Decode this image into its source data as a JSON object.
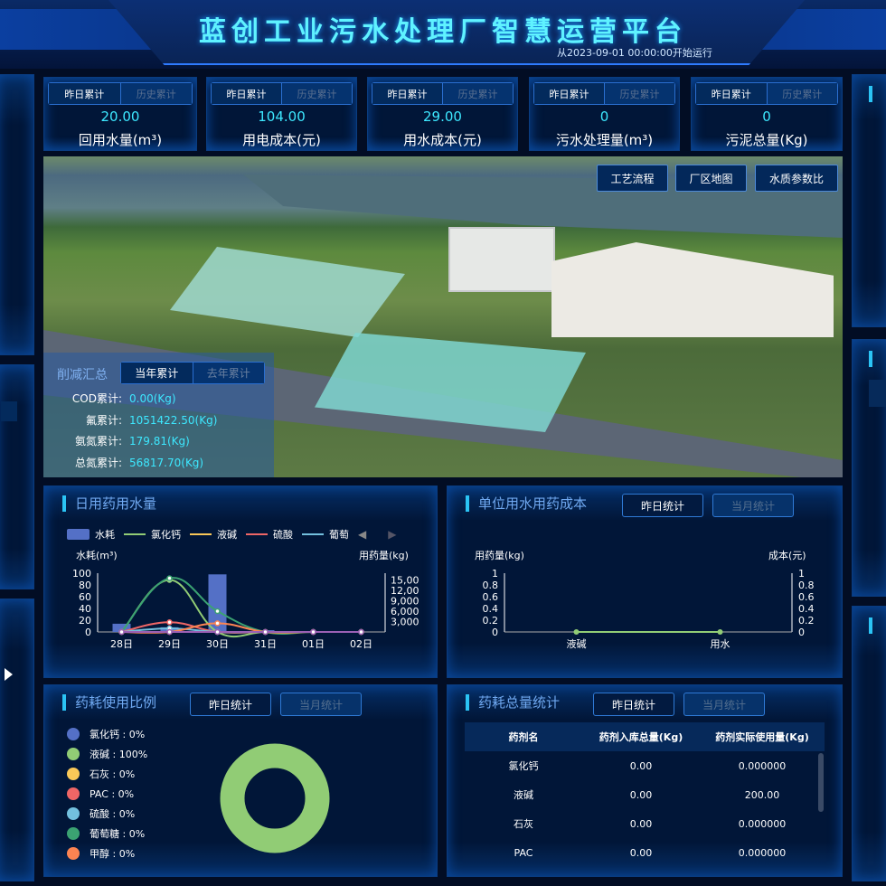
{
  "header": {
    "title": "蓝创工业污水处理厂智慧运营平台",
    "subtitle": "从2023-09-01 00:00:00开始运行"
  },
  "kpis": [
    {
      "tab_on": "昨日累计",
      "tab_off": "历史累计",
      "value": "20.00",
      "label": "回用水量(m³)"
    },
    {
      "tab_on": "昨日累计",
      "tab_off": "历史累计",
      "value": "104.00",
      "label": "用电成本(元)"
    },
    {
      "tab_on": "昨日累计",
      "tab_off": "历史累计",
      "value": "29.00",
      "label": "用水成本(元)"
    },
    {
      "tab_on": "昨日累计",
      "tab_off": "历史累计",
      "value": "0",
      "label": "污水处理量(m³)"
    },
    {
      "tab_on": "昨日累计",
      "tab_off": "历史累计",
      "value": "0",
      "label": "污泥总量(Kg)"
    }
  ],
  "map": {
    "buttons": [
      "工艺流程",
      "厂区地图",
      "水质参数比"
    ],
    "reduction": {
      "title": "削减汇总",
      "tab_on": "当年累计",
      "tab_off": "去年累计",
      "rows": [
        {
          "label": "COD累计:",
          "value": "0.00(Kg)"
        },
        {
          "label": "氟累计:",
          "value": "1051422.50(Kg)"
        },
        {
          "label": "氨氮累计:",
          "value": "179.81(Kg)"
        },
        {
          "label": "总氮累计:",
          "value": "56817.70(Kg)"
        }
      ]
    }
  },
  "daily": {
    "title": "日用药用水量"
  },
  "unit_cost": {
    "title": "单位用水用药成本",
    "btn_on": "昨日统计",
    "btn_off": "当月统计"
  },
  "ratio": {
    "title": "药耗使用比例",
    "btn_on": "昨日统计",
    "btn_off": "当月统计",
    "items": [
      {
        "label": "氯化钙 : 0%",
        "color": "#5470c6"
      },
      {
        "label": "液碱 : 100%",
        "color": "#91cc75"
      },
      {
        "label": "石灰 : 0%",
        "color": "#fac858"
      },
      {
        "label": "PAC : 0%",
        "color": "#ee6666"
      },
      {
        "label": "硫酸 : 0%",
        "color": "#73c0de"
      },
      {
        "label": "葡萄糖 : 0%",
        "color": "#3ba272"
      },
      {
        "label": "甲醇 : 0%",
        "color": "#fc8452"
      }
    ]
  },
  "total": {
    "title": "药耗总量统计",
    "btn_on": "昨日统计",
    "btn_off": "当月统计",
    "headers": [
      "药剂名",
      "药剂入库总量(Kg)",
      "药剂实际使用量(Kg)"
    ],
    "rows": [
      [
        "氯化钙",
        "0.00",
        "0.000000"
      ],
      [
        "液碱",
        "0.00",
        "200.00"
      ],
      [
        "石灰",
        "0.00",
        "0.000000"
      ],
      [
        "PAC",
        "0.00",
        "0.000000"
      ]
    ]
  },
  "chart_data": [
    {
      "type": "bar+line",
      "title": "日用药用水量",
      "categories": [
        "28日",
        "29日",
        "30日",
        "31日",
        "01日",
        "02日"
      ],
      "ylabel_left": "水耗(m³)",
      "ylabel_right": "用药量(kg)",
      "ylim_left": [
        0,
        100
      ],
      "ylim_right": [
        0,
        18000
      ],
      "yticks_left": [
        "100",
        "80",
        "60",
        "40",
        "20",
        "0"
      ],
      "yticks_right": [
        "15,00",
        "12,00",
        "9,000",
        "6,000",
        "3,000"
      ],
      "legend_position": "top",
      "series": [
        {
          "name": "水耗",
          "type": "bar",
          "axis": "left",
          "color": "#5470c6",
          "values": [
            14,
            8,
            98,
            3,
            0,
            0
          ]
        },
        {
          "name": "氯化钙",
          "type": "line",
          "axis": "right",
          "color": "#91cc75",
          "values": [
            0,
            15000,
            0,
            0,
            0,
            0
          ]
        },
        {
          "name": "液碱",
          "type": "line",
          "axis": "right",
          "color": "#fac858",
          "values": [
            0,
            0,
            0,
            0,
            0,
            0
          ]
        },
        {
          "name": "硫酸",
          "type": "line",
          "axis": "right",
          "color": "#ee6666",
          "values": [
            0,
            2800,
            0,
            0,
            0,
            0
          ]
        },
        {
          "name": "葡萄",
          "type": "line",
          "axis": "right",
          "color": "#73c0de",
          "values": [
            0,
            1000,
            0,
            0,
            0,
            0
          ]
        },
        {
          "type": "line",
          "axis": "right",
          "color": "#3ba272",
          "values": [
            0,
            15500,
            6000,
            0,
            0,
            0
          ]
        },
        {
          "type": "line",
          "axis": "right",
          "color": "#fc8452",
          "values": [
            0,
            0,
            2500,
            0,
            0,
            0
          ]
        },
        {
          "type": "line",
          "axis": "right",
          "color": "#9a60b4",
          "values": [
            0,
            0,
            0,
            0,
            0,
            0
          ]
        }
      ]
    },
    {
      "type": "line",
      "title": "单位用水用药成本",
      "categories": [
        "液碱",
        "用水"
      ],
      "ylabel_left": "用药量(kg)",
      "ylabel_right": "成本(元)",
      "ylim": [
        0,
        1
      ],
      "yticks": [
        "1",
        "0.8",
        "0.6",
        "0.4",
        "0.2",
        "0"
      ],
      "series": [
        {
          "color": "#91cc75",
          "values": [
            0,
            0
          ]
        }
      ]
    },
    {
      "type": "pie",
      "title": "药耗使用比例",
      "donut": true,
      "categories": [
        "氯化钙",
        "液碱",
        "石灰",
        "PAC",
        "硫酸",
        "葡萄糖",
        "甲醇"
      ],
      "values": [
        0,
        100,
        0,
        0,
        0,
        0,
        0
      ]
    }
  ]
}
